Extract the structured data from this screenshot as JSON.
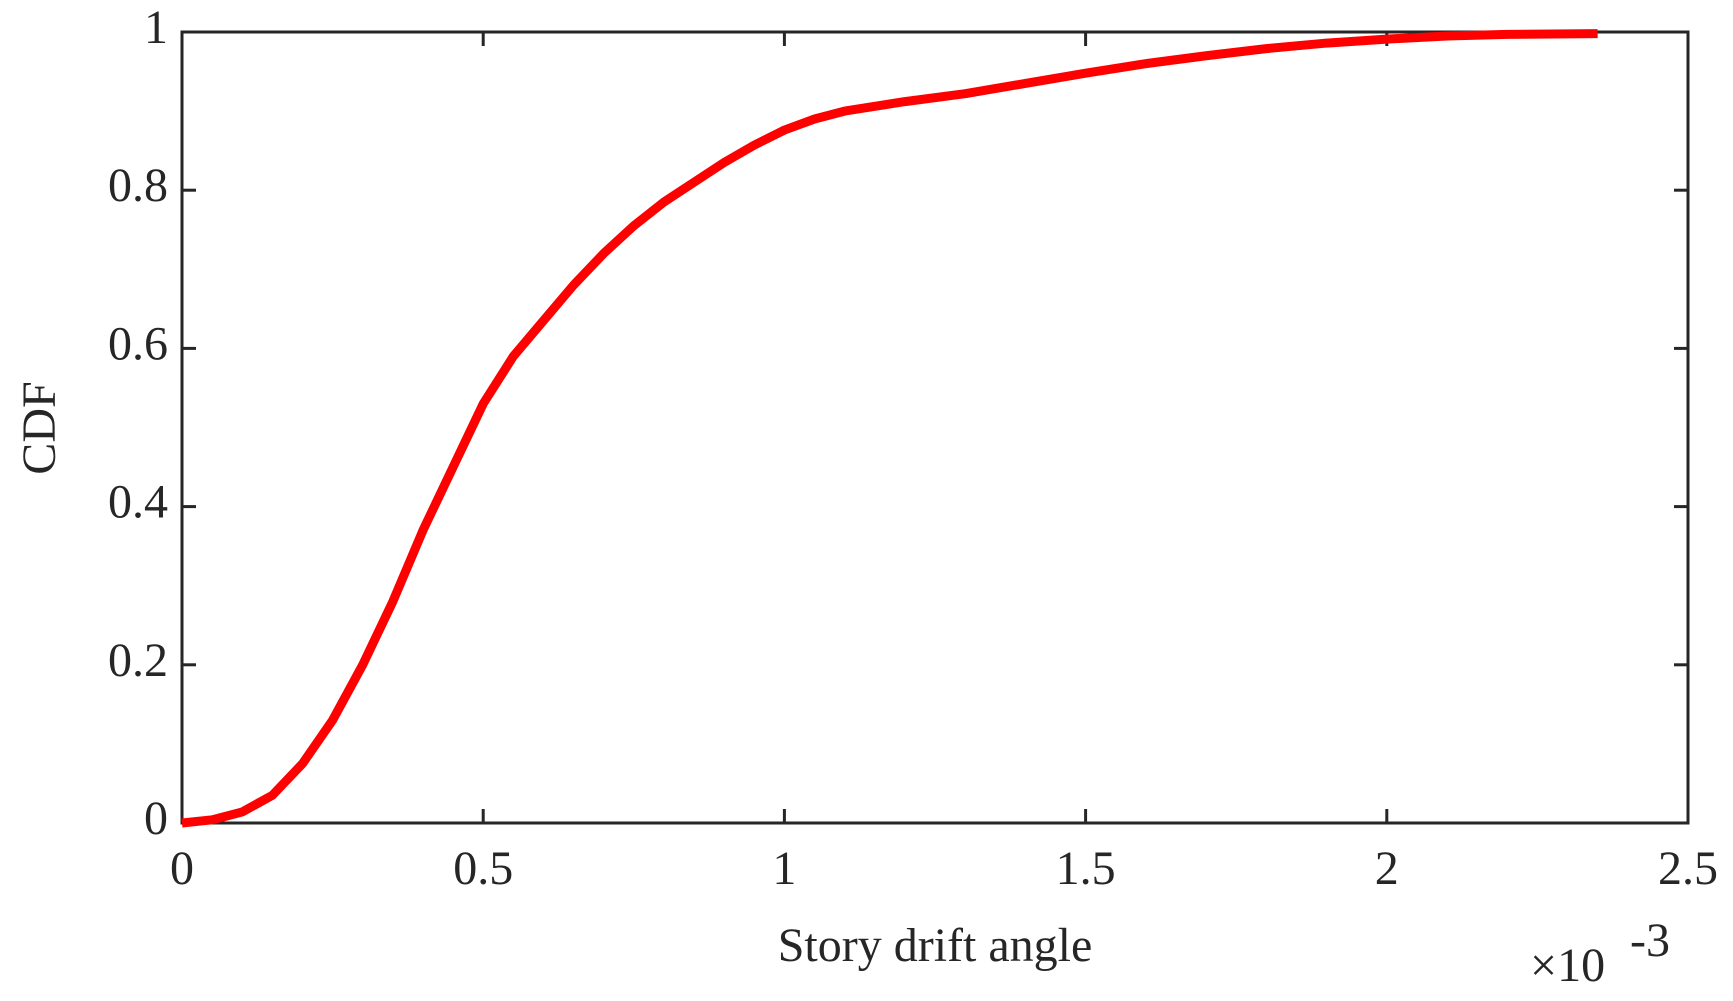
{
  "chart_data": {
    "type": "line",
    "x_label": "Story drift angle",
    "y_label": "CDF",
    "x_exponent": {
      "base": "×10",
      "power": "-3"
    },
    "x": [
      0,
      0.05,
      0.1,
      0.15,
      0.2,
      0.25,
      0.3,
      0.35,
      0.4,
      0.45,
      0.5,
      0.55,
      0.6,
      0.65,
      0.7,
      0.75,
      0.8,
      0.85,
      0.9,
      0.95,
      1.0,
      1.05,
      1.1,
      1.2,
      1.3,
      1.4,
      1.5,
      1.6,
      1.7,
      1.8,
      1.9,
      2.0,
      2.1,
      2.2,
      2.35
    ],
    "series": [
      {
        "color": "#ff0000",
        "values": [
          0,
          0.004,
          0.014,
          0.035,
          0.075,
          0.13,
          0.2,
          0.28,
          0.37,
          0.45,
          0.53,
          0.59,
          0.635,
          0.68,
          0.72,
          0.755,
          0.785,
          0.81,
          0.835,
          0.857,
          0.876,
          0.89,
          0.9,
          0.912,
          0.922,
          0.935,
          0.948,
          0.96,
          0.97,
          0.979,
          0.986,
          0.991,
          0.995,
          0.997,
          0.998
        ]
      }
    ],
    "xlim": [
      0,
      2.5
    ],
    "xticks": [
      0,
      0.5,
      1,
      1.5,
      2,
      2.5
    ],
    "ylim": [
      0,
      1
    ],
    "yticks": [
      0,
      0.2,
      0.4,
      0.6,
      0.8,
      1
    ],
    "grid": false
  }
}
